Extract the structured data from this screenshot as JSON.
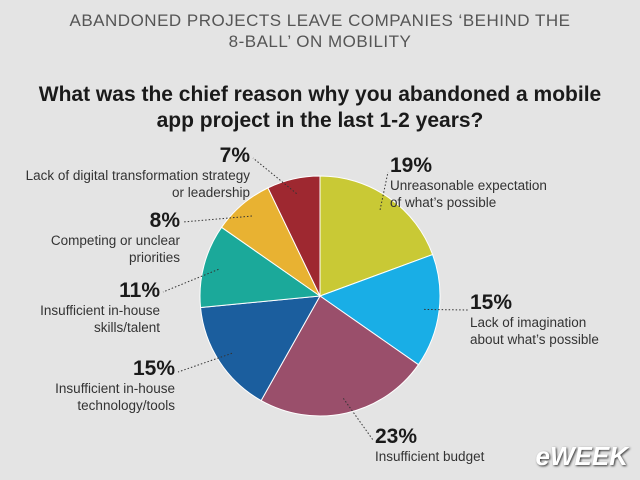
{
  "chart_data": {
    "type": "pie",
    "header": "ABANDONED PROJECTS LEAVE COMPANIES ‘BEHIND THE 8-BALL’ ON MOBILITY",
    "title": "What was the chief reason why you abandoned a mobile app project in the last 1-2 years?",
    "categories": [
      "Unreasonable expectation of what’s possible",
      "Lack of imagination about what’s possible",
      "Insufficient budget",
      "Insufficient in-house technology/tools",
      "Insufficient in-house skills/talent",
      "Competing or unclear priorities",
      "Lack of digital transformation strategy or leadership"
    ],
    "values": [
      19,
      15,
      23,
      15,
      11,
      8,
      7
    ],
    "value_labels": [
      "19%",
      "15%",
      "23%",
      "15%",
      "11%",
      "8%",
      "7%"
    ],
    "colors": [
      "#c9c935",
      "#19aee6",
      "#9a4f6b",
      "#1b5e9e",
      "#1ba99a",
      "#e8b232",
      "#9e2830"
    ],
    "logo": "eWEEK"
  }
}
